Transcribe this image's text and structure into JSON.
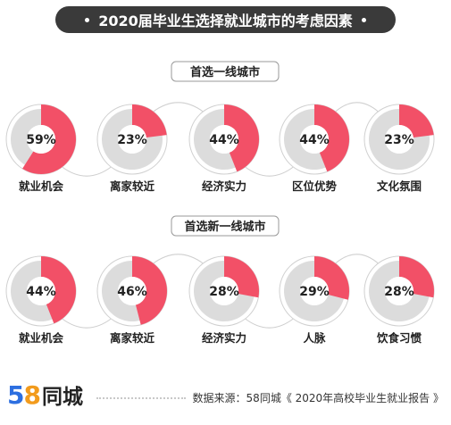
{
  "header": {
    "title": "2020届毕业生选择就业城市的考虑因素"
  },
  "colors": {
    "accent": "#f25067",
    "track": "#dcdcdc",
    "dark": "#3a3a3a"
  },
  "chart_data": [
    {
      "type": "pie",
      "title": "首选一线城市",
      "categories": [
        "就业机会",
        "离家较近",
        "经济实力",
        "区位优势",
        "文化氛围"
      ],
      "values": [
        59,
        23,
        44,
        44,
        23
      ],
      "value_labels": [
        "59%",
        "23%",
        "44%",
        "44%",
        "23%"
      ],
      "unit": "%"
    },
    {
      "type": "pie",
      "title": "首选新一线城市",
      "categories": [
        "就业机会",
        "离家较近",
        "经济实力",
        "人脉",
        "饮食习惯"
      ],
      "values": [
        44,
        46,
        28,
        29,
        28
      ],
      "value_labels": [
        "44%",
        "46%",
        "28%",
        "29%",
        "28%"
      ],
      "unit": "%"
    }
  ],
  "footer": {
    "logo_number": "58",
    "logo_text": "同城",
    "source": "数据来源：58同城《 2020年高校毕业生就业报告 》"
  }
}
